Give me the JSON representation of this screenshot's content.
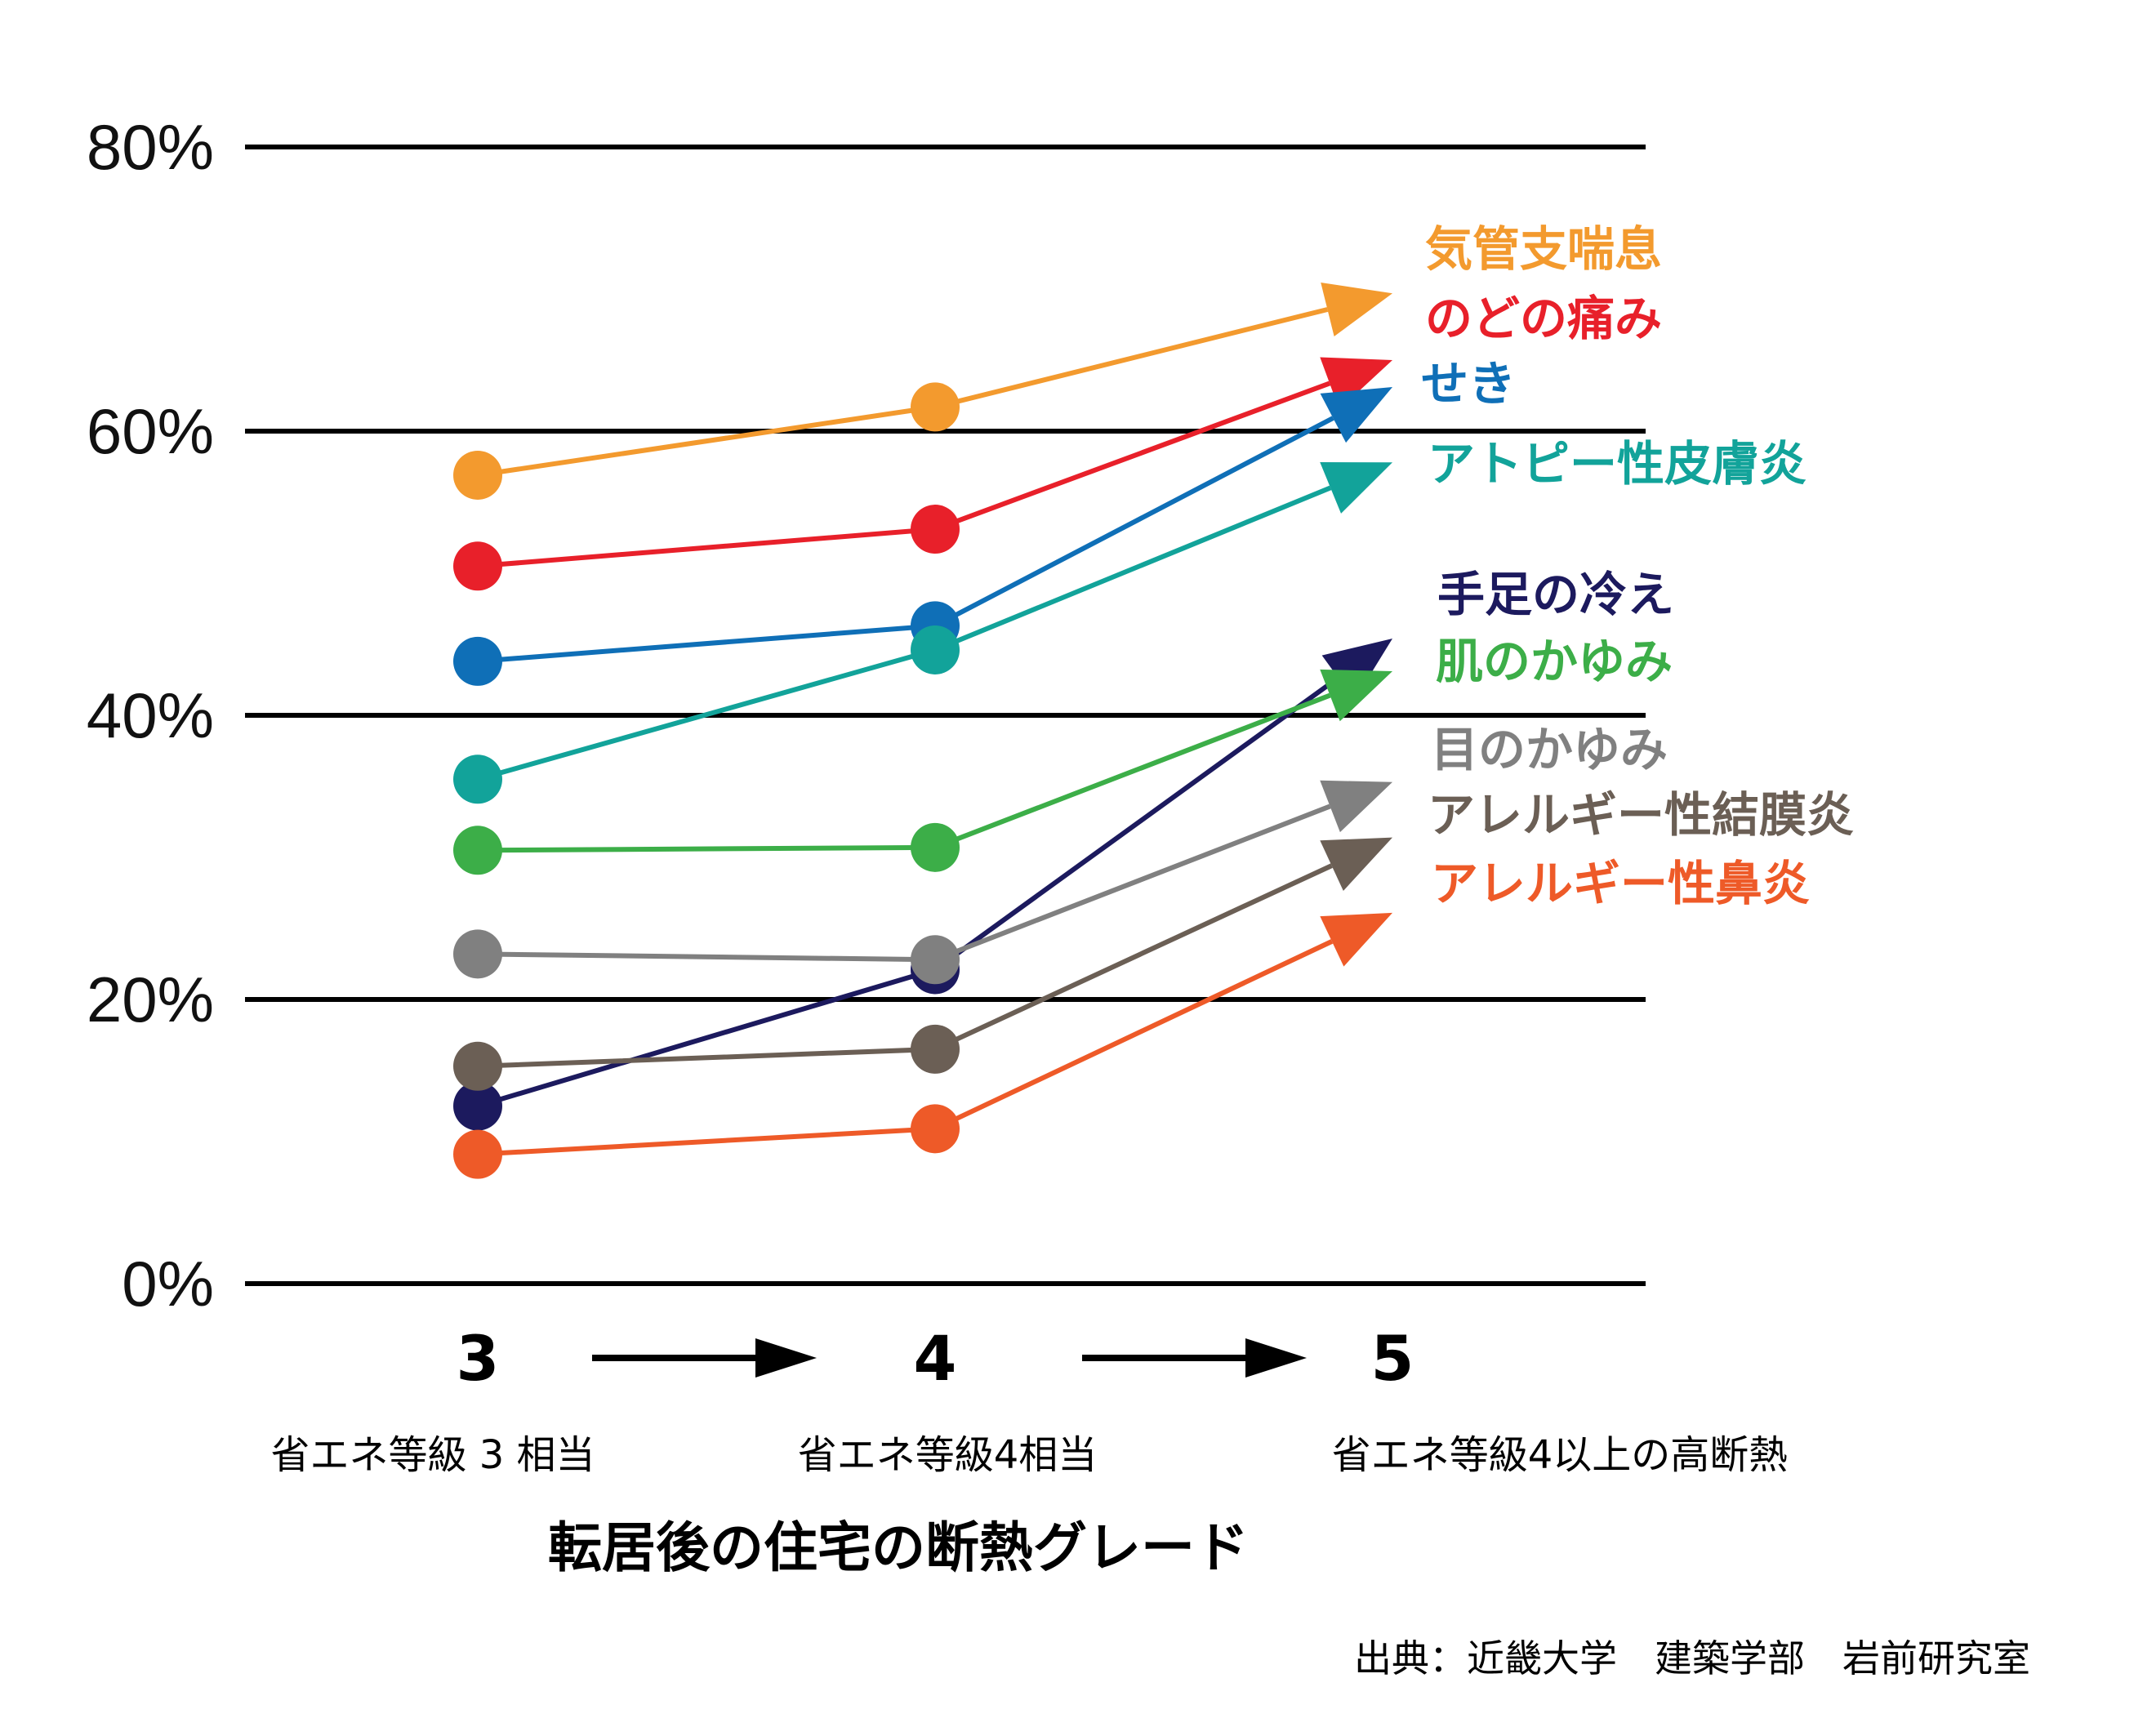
{
  "chart_data": {
    "type": "line",
    "title": "",
    "xlabel": "転居後の住宅の断熱グレード",
    "ylabel": "",
    "ylim": [
      0,
      80
    ],
    "y_ticks": [
      "0%",
      "20%",
      "40%",
      "60%",
      "80%"
    ],
    "y_tick_values": [
      0,
      20,
      40,
      60,
      80
    ],
    "grid": true,
    "categories": [
      "3",
      "4",
      "5"
    ],
    "category_descriptions": [
      "省エネ等級 3 相当",
      "省エネ等級4相当",
      "省エネ等級4以上の高断熱"
    ],
    "series": [
      {
        "name": "気管支喘息",
        "color": "#F39A2E",
        "values": [
          56.9,
          61.7,
          69.7
        ]
      },
      {
        "name": "のどの痛み",
        "color": "#E8202A",
        "values": [
          50.5,
          53.1,
          65.0
        ]
      },
      {
        "name": "せき",
        "color": "#0F6FB7",
        "values": [
          43.8,
          46.3,
          63.1
        ]
      },
      {
        "name": "アトピー性皮膚炎",
        "color": "#12A39A",
        "values": [
          35.5,
          44.6,
          57.8
        ]
      },
      {
        "name": "手足の冷え",
        "color": "#1C1A5E",
        "values": [
          12.5,
          22.1,
          45.4
        ]
      },
      {
        "name": "肌のかゆみ",
        "color": "#3CAE48",
        "values": [
          30.5,
          30.7,
          43.1
        ]
      },
      {
        "name": "目のかゆみ",
        "color": "#808080",
        "values": [
          23.2,
          22.8,
          35.3
        ]
      },
      {
        "name": "アレルギー性結膜炎",
        "color": "#6B5F55",
        "values": [
          15.3,
          16.5,
          31.4
        ]
      },
      {
        "name": "アレルギー性鼻炎",
        "color": "#EE5A28",
        "values": [
          9.1,
          10.9,
          26.1
        ]
      }
    ]
  },
  "source_text": "出典：近畿大学　建築学部　岩前研究室"
}
